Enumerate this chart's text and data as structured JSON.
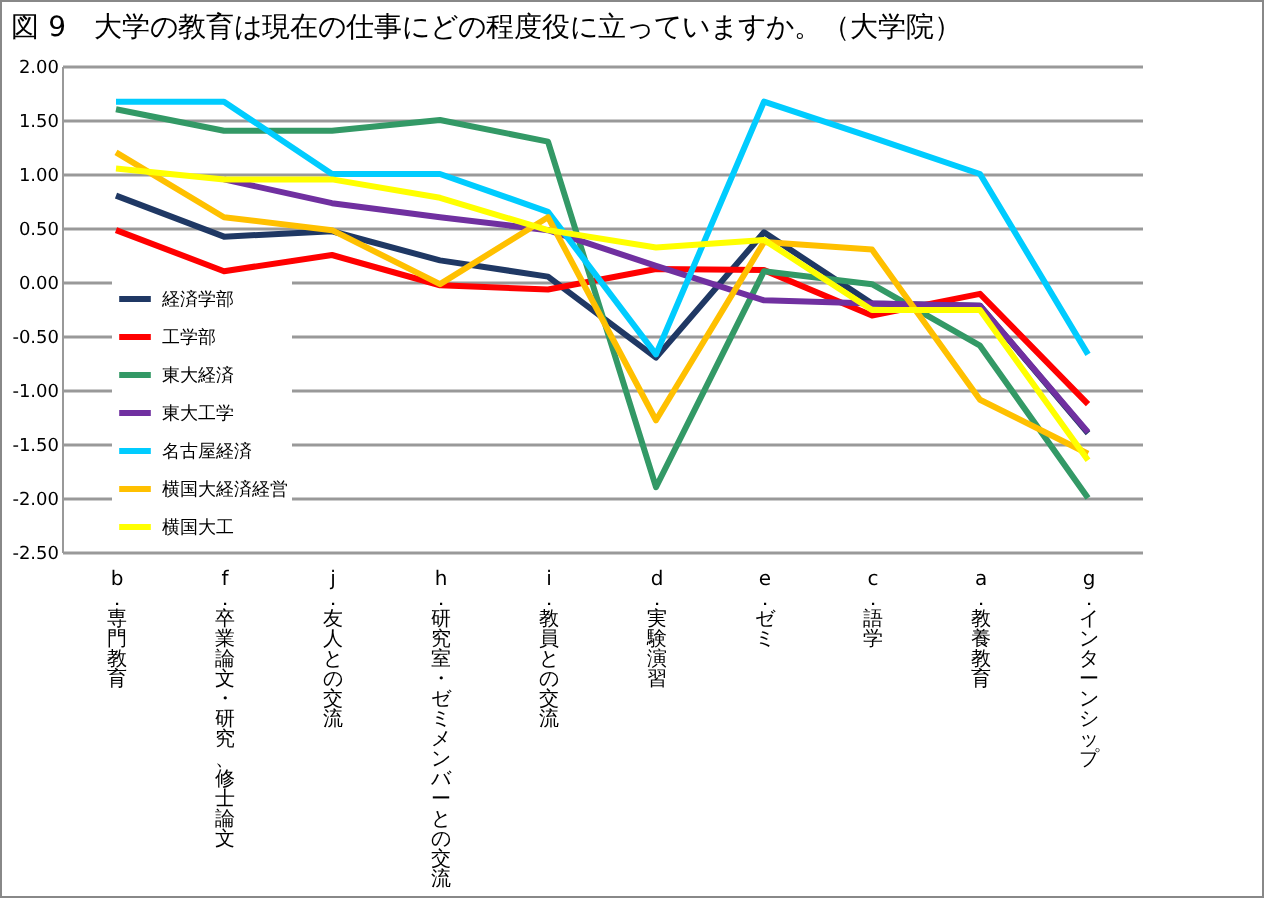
{
  "chart_data": {
    "type": "line",
    "title": "図 9　大学の教育は現在の仕事にどの程度役に立っていますか。（大学院）",
    "categories": [
      "b．専門教育",
      "f．卒業論文・研究、修士論文",
      "j．友人との交流",
      "h．研究室・ゼミメンバーとの交流",
      "i．教員との交流",
      "d．実験演習",
      "e．ゼミ",
      "c．語学",
      "a．教養教育",
      "g．インターンシップ"
    ],
    "series": [
      {
        "name": "経済学部",
        "color": "#1f3864",
        "values": [
          0.8,
          0.42,
          0.47,
          0.2,
          0.05,
          -0.7,
          0.46,
          -0.2,
          -0.22,
          -1.4
        ]
      },
      {
        "name": "工学部",
        "color": "#ff0000",
        "values": [
          0.48,
          0.1,
          0.25,
          -0.03,
          -0.07,
          0.12,
          0.11,
          -0.31,
          -0.11,
          -1.13
        ]
      },
      {
        "name": "東大経済",
        "color": "#339966",
        "values": [
          1.6,
          1.4,
          1.4,
          1.5,
          1.3,
          -1.9,
          0.1,
          -0.02,
          -0.59,
          -2.0
        ]
      },
      {
        "name": "東大工学",
        "color": "#7030a0",
        "values": [
          null,
          0.95,
          0.73,
          0.6,
          0.48,
          0.15,
          -0.17,
          -0.2,
          -0.22,
          -1.39
        ]
      },
      {
        "name": "名古屋経済",
        "color": "#00ccff",
        "values": [
          1.67,
          1.67,
          1.0,
          1.0,
          0.65,
          -0.67,
          1.67,
          1.34,
          1.0,
          -0.67
        ]
      },
      {
        "name": "横国大経済経営",
        "color": "#ffc000",
        "values": [
          1.2,
          0.6,
          0.48,
          -0.02,
          0.6,
          -1.28,
          0.37,
          0.3,
          -1.09,
          -1.59
        ]
      },
      {
        "name": "横国大工",
        "color": "#ffff00",
        "values": [
          1.05,
          0.95,
          0.95,
          0.78,
          0.48,
          0.32,
          0.39,
          -0.26,
          -0.26,
          -1.65
        ]
      }
    ],
    "ylim": [
      -2.5,
      2.0
    ],
    "yticks": [
      {
        "value": -2.5,
        "label": "-2.50"
      },
      {
        "value": -2.0,
        "label": "-2.00"
      },
      {
        "value": -1.5,
        "label": "-1.50"
      },
      {
        "value": -1.0,
        "label": "-1.00"
      },
      {
        "value": -0.5,
        "label": "-0.50"
      },
      {
        "value": 0,
        "label": "0.00"
      },
      {
        "value": 0.5,
        "label": "0.50"
      },
      {
        "value": 1.0,
        "label": "1.00"
      },
      {
        "value": 1.5,
        "label": "1.50"
      },
      {
        "value": 2.0,
        "label": "2.00"
      }
    ],
    "grid": "y",
    "legend": "left"
  }
}
